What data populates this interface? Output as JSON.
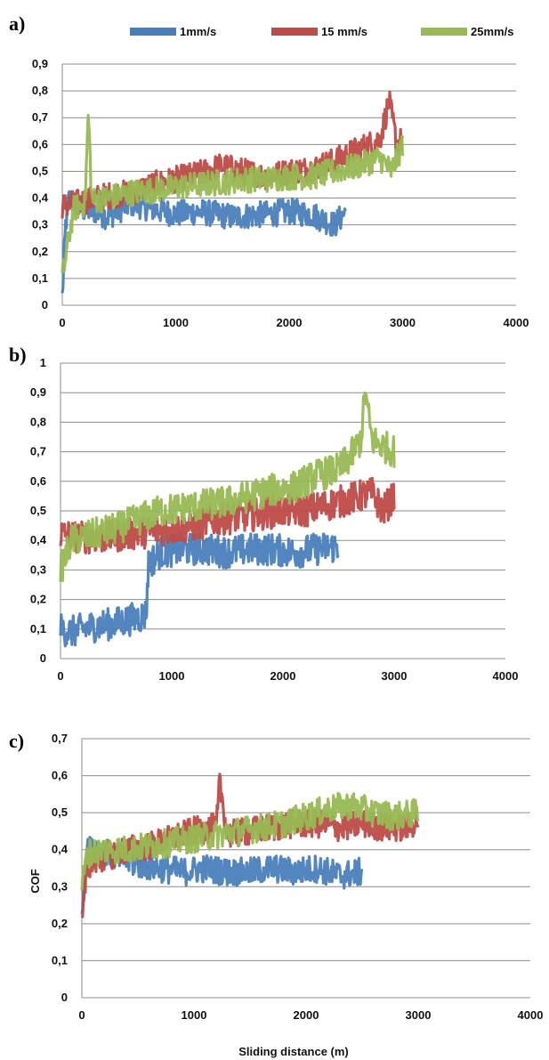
{
  "legend": {
    "items": [
      {
        "label": "1mm/s",
        "color": "#4a7ebb"
      },
      {
        "label": "15 mm/s",
        "color": "#be4b48"
      },
      {
        "label": "25mm/s",
        "color": "#98b954"
      }
    ]
  },
  "chart_data": [
    {
      "type": "line",
      "panel_label": "a)",
      "xlabel": "",
      "ylabel": "",
      "xlim": [
        0,
        4000
      ],
      "ylim": [
        0,
        0.9
      ],
      "x_ticks": [
        0,
        1000,
        2000,
        3000,
        4000
      ],
      "x_tick_labels": [
        "0",
        "1000",
        "2000",
        "3000",
        "4000"
      ],
      "y_ticks": [
        0,
        0.1,
        0.2,
        0.3,
        0.4,
        0.5,
        0.6,
        0.7,
        0.8,
        0.9
      ],
      "y_tick_labels": [
        "0",
        "0,1",
        "0,2",
        "0,3",
        "0,4",
        "0,5",
        "0,6",
        "0,7",
        "0,8",
        "0,9"
      ],
      "grid": "horizontal",
      "series": [
        {
          "name": "1mm/s",
          "color": "#4a7ebb",
          "x": [
            0,
            30,
            60,
            150,
            300,
            400,
            600,
            800,
            1000,
            1200,
            1500,
            1800,
            2000,
            2200,
            2400,
            2500
          ],
          "y": [
            0.03,
            0.3,
            0.4,
            0.36,
            0.35,
            0.33,
            0.38,
            0.36,
            0.34,
            0.35,
            0.33,
            0.34,
            0.35,
            0.34,
            0.3,
            0.35
          ],
          "band": [
            0.28,
            0.48,
            0.44,
            0.44,
            0.42,
            0.42,
            0.42,
            0.43,
            0.42,
            0.42,
            0.42,
            0.42,
            0.43,
            0.43,
            0.43,
            0.43
          ],
          "band_low": [
            0.02,
            0.1,
            0.3,
            0.25,
            0.22,
            0.23,
            0.25,
            0.25,
            0.25,
            0.24,
            0.25,
            0.25,
            0.25,
            0.24,
            0.22,
            0.24
          ]
        },
        {
          "name": "15 mm/s",
          "color": "#be4b48",
          "x": [
            0,
            200,
            400,
            600,
            800,
            1000,
            1200,
            1400,
            1600,
            1800,
            2000,
            2200,
            2400,
            2600,
            2800,
            2880,
            2950,
            3000
          ],
          "y": [
            0.37,
            0.39,
            0.41,
            0.42,
            0.45,
            0.47,
            0.49,
            0.52,
            0.5,
            0.48,
            0.5,
            0.51,
            0.54,
            0.58,
            0.62,
            0.76,
            0.6,
            0.62
          ]
        },
        {
          "name": "25mm/s",
          "color": "#98b954",
          "x": [
            0,
            100,
            200,
            230,
            260,
            400,
            600,
            800,
            1000,
            1200,
            1400,
            1600,
            1800,
            2000,
            2200,
            2400,
            2600,
            2800,
            2900,
            3000
          ],
          "y": [
            0.1,
            0.36,
            0.38,
            0.72,
            0.39,
            0.4,
            0.42,
            0.43,
            0.44,
            0.45,
            0.46,
            0.47,
            0.47,
            0.48,
            0.48,
            0.5,
            0.52,
            0.55,
            0.5,
            0.6
          ]
        }
      ]
    },
    {
      "type": "line",
      "panel_label": "b)",
      "xlabel": "",
      "ylabel": "",
      "xlim": [
        0,
        4000
      ],
      "ylim": [
        0,
        1
      ],
      "x_ticks": [
        0,
        1000,
        2000,
        3000,
        4000
      ],
      "x_tick_labels": [
        "0",
        "1000",
        "2000",
        "3000",
        "4000"
      ],
      "y_ticks": [
        0,
        0.1,
        0.2,
        0.3,
        0.4,
        0.5,
        0.6,
        0.7,
        0.8,
        0.9,
        1
      ],
      "y_tick_labels": [
        "0",
        "0,1",
        "0,2",
        "0,3",
        "0,4",
        "0,5",
        "0,6",
        "0,7",
        "0,8",
        "0,9",
        "1"
      ],
      "grid": "horizontal",
      "series": [
        {
          "name": "1mm/s",
          "color": "#4a7ebb",
          "x": [
            0,
            100,
            300,
            500,
            700,
            770,
            790,
            900,
            1100,
            1300,
            1500,
            1700,
            1900,
            2100,
            2300,
            2500
          ],
          "y": [
            0.1,
            0.09,
            0.11,
            0.12,
            0.14,
            0.15,
            0.32,
            0.36,
            0.37,
            0.37,
            0.36,
            0.37,
            0.37,
            0.36,
            0.37,
            0.38
          ]
        },
        {
          "name": "15 mm/s",
          "color": "#be4b48",
          "x": [
            0,
            200,
            400,
            600,
            800,
            1000,
            1200,
            1400,
            1600,
            1800,
            2000,
            2200,
            2400,
            2600,
            2800,
            2900,
            3000
          ],
          "y": [
            0.42,
            0.41,
            0.41,
            0.42,
            0.43,
            0.44,
            0.45,
            0.47,
            0.48,
            0.49,
            0.5,
            0.5,
            0.52,
            0.54,
            0.56,
            0.5,
            0.55
          ]
        },
        {
          "name": "25mm/s",
          "color": "#98b954",
          "x": [
            0,
            100,
            300,
            500,
            700,
            900,
            1100,
            1300,
            1500,
            1700,
            1900,
            2100,
            2300,
            2500,
            2600,
            2700,
            2740,
            2800,
            2900,
            3000
          ],
          "y": [
            0.3,
            0.4,
            0.42,
            0.44,
            0.47,
            0.5,
            0.51,
            0.52,
            0.53,
            0.55,
            0.57,
            0.58,
            0.62,
            0.64,
            0.68,
            0.74,
            0.9,
            0.74,
            0.72,
            0.7
          ]
        }
      ]
    },
    {
      "type": "line",
      "panel_label": "c)",
      "xlabel": "Sliding distance (m)",
      "ylabel": "COF",
      "xlim": [
        0,
        4000
      ],
      "ylim": [
        0,
        0.7
      ],
      "x_ticks": [
        0,
        1000,
        2000,
        3000,
        4000
      ],
      "x_tick_labels": [
        "0",
        "1000",
        "2000",
        "3000",
        "4000"
      ],
      "y_ticks": [
        0,
        0.1,
        0.2,
        0.3,
        0.4,
        0.5,
        0.6,
        0.7
      ],
      "y_tick_labels": [
        "0",
        "0,1",
        "0,2",
        "0,3",
        "0,4",
        "0,5",
        "0,6",
        "0,7"
      ],
      "grid": "horizontal",
      "series": [
        {
          "name": "1mm/s",
          "color": "#4a7ebb",
          "x": [
            0,
            50,
            150,
            300,
            500,
            700,
            900,
            1100,
            1300,
            1500,
            1700,
            1900,
            2100,
            2300,
            2500
          ],
          "y": [
            0.22,
            0.42,
            0.4,
            0.38,
            0.36,
            0.35,
            0.34,
            0.35,
            0.34,
            0.34,
            0.35,
            0.34,
            0.35,
            0.33,
            0.34
          ]
        },
        {
          "name": "15 mm/s",
          "color": "#be4b48",
          "x": [
            0,
            50,
            200,
            400,
            600,
            800,
            1000,
            1200,
            1230,
            1300,
            1500,
            1700,
            1900,
            2100,
            2300,
            2500,
            2700,
            2900,
            3000
          ],
          "y": [
            0.22,
            0.36,
            0.38,
            0.4,
            0.41,
            0.43,
            0.45,
            0.46,
            0.58,
            0.44,
            0.45,
            0.46,
            0.47,
            0.47,
            0.46,
            0.47,
            0.46,
            0.46,
            0.48
          ]
        },
        {
          "name": "25mm/s",
          "color": "#98b954",
          "x": [
            0,
            50,
            200,
            400,
            600,
            800,
            1000,
            1200,
            1400,
            1600,
            1800,
            2000,
            2200,
            2400,
            2600,
            2800,
            3000
          ],
          "y": [
            0.3,
            0.39,
            0.4,
            0.4,
            0.41,
            0.42,
            0.43,
            0.44,
            0.45,
            0.46,
            0.47,
            0.49,
            0.51,
            0.52,
            0.5,
            0.49,
            0.5
          ]
        }
      ]
    }
  ]
}
